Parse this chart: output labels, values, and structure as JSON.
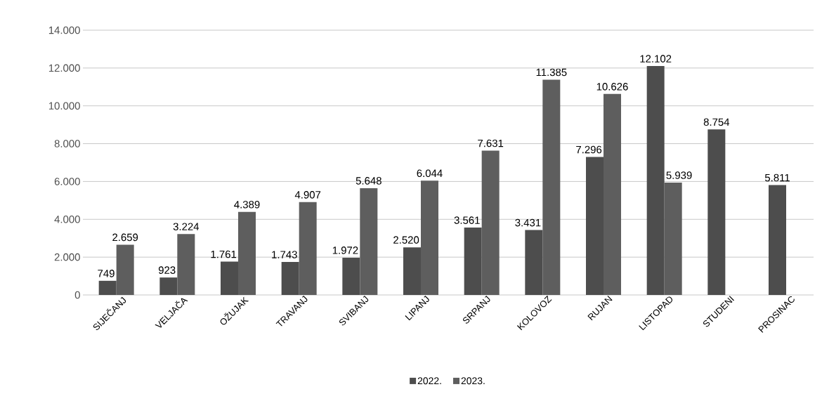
{
  "chart_data": {
    "type": "bar",
    "categories": [
      "SIJEČANJ",
      "VELJAČA",
      "OŽUJAK",
      "TRAVANJ",
      "SVIBANJ",
      "LIPANJ",
      "SRPANJ",
      "KOLOVOZ",
      "RUJAN",
      "LISTOPAD",
      "STUDENI",
      "PROSINAC"
    ],
    "series": [
      {
        "name": "2022.",
        "color": "#4d4d4d",
        "values": [
          749,
          923,
          1761,
          1743,
          1972,
          2520,
          3561,
          3431,
          7296,
          12102,
          8754,
          5811
        ],
        "value_labels": [
          "749",
          "923",
          "1.761",
          "1.743",
          "1.972",
          "2.520",
          "3.561",
          "3.431",
          "7.296",
          "12.102",
          "8.754",
          "5.811"
        ]
      },
      {
        "name": "2023.",
        "color": "#5e5e5e",
        "values": [
          2659,
          3224,
          4389,
          4907,
          5648,
          6044,
          7631,
          11385,
          10626,
          5939,
          null,
          null
        ],
        "value_labels": [
          "2.659",
          "3.224",
          "4.389",
          "4.907",
          "5.648",
          "6.044",
          "7.631",
          "11.385",
          "10.626",
          "5.939",
          null,
          null
        ]
      }
    ],
    "ylim": [
      0,
      14000
    ],
    "yticks": [
      {
        "value": 0,
        "label": "0"
      },
      {
        "value": 2000,
        "label": "2.000"
      },
      {
        "value": 4000,
        "label": "4.000"
      },
      {
        "value": 6000,
        "label": "6.000"
      },
      {
        "value": 8000,
        "label": "8.000"
      },
      {
        "value": 10000,
        "label": "10.000"
      },
      {
        "value": 12000,
        "label": "12.000"
      },
      {
        "value": 14000,
        "label": "14.000"
      }
    ],
    "grid": "y",
    "legend": "bottom"
  }
}
